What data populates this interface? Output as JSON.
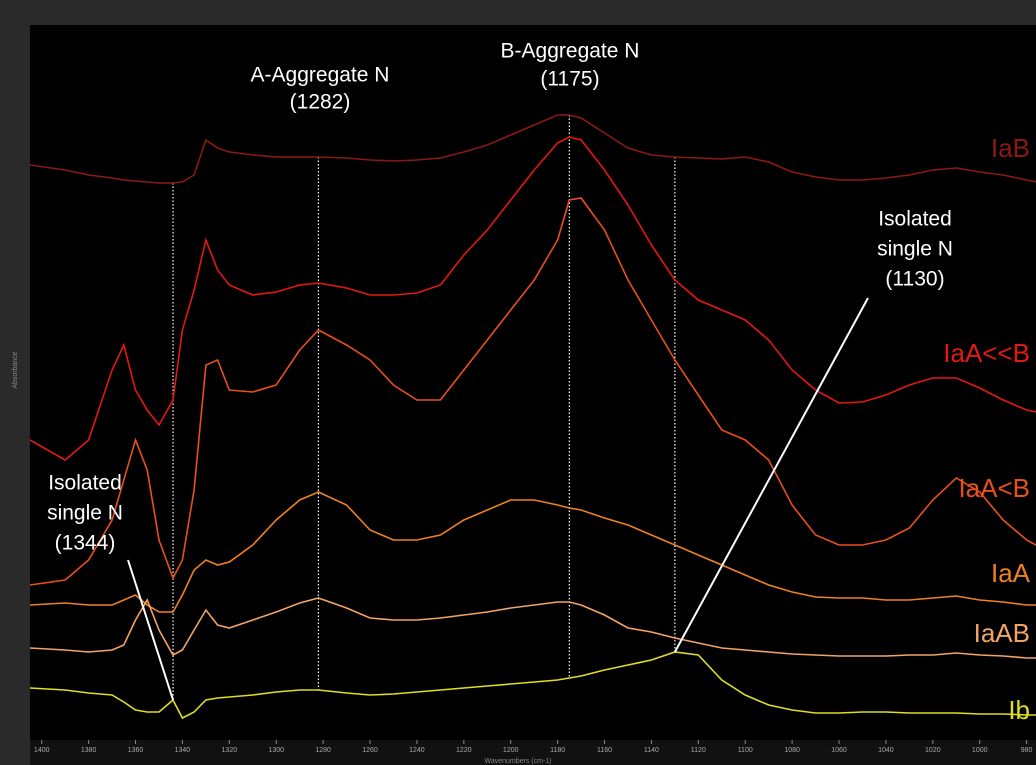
{
  "chart_data": {
    "type": "line",
    "x_label": "Wavenumbers (cm-1)",
    "y_label": "Absorbance",
    "xlim": [
      1405,
      976
    ],
    "ylim": [
      0,
      715
    ],
    "xticks": [
      1400,
      1380,
      1360,
      1340,
      1320,
      1300,
      1280,
      1260,
      1240,
      1220,
      1200,
      1180,
      1160,
      1140,
      1120,
      1100,
      1080,
      1060,
      1040,
      1020,
      1000,
      980
    ],
    "x": [
      1405,
      1390,
      1380,
      1370,
      1365,
      1360,
      1355,
      1350,
      1344,
      1340,
      1335,
      1330,
      1325,
      1320,
      1310,
      1300,
      1290,
      1282,
      1270,
      1260,
      1250,
      1240,
      1230,
      1220,
      1210,
      1200,
      1190,
      1180,
      1175,
      1170,
      1160,
      1150,
      1140,
      1130,
      1120,
      1110,
      1100,
      1090,
      1080,
      1070,
      1060,
      1050,
      1040,
      1030,
      1020,
      1010,
      1000,
      990,
      980,
      976
    ],
    "series": [
      {
        "name": "IaB",
        "color": "#8a1a14",
        "values": [
          575,
          570,
          565,
          562,
          560,
          559,
          558,
          557,
          557,
          558,
          565,
          600,
          592,
          588,
          585,
          583,
          583,
          583,
          582,
          580,
          579,
          580,
          582,
          588,
          595,
          605,
          615,
          625,
          625,
          622,
          607,
          592,
          585,
          583,
          582,
          581,
          583,
          578,
          568,
          563,
          560,
          560,
          562,
          565,
          570,
          572,
          568,
          565,
          560,
          558
        ]
      },
      {
        "name": "IaA<<B",
        "color": "#e41812",
        "values": [
          300,
          280,
          300,
          370,
          395,
          350,
          330,
          315,
          340,
          410,
          450,
          500,
          470,
          455,
          445,
          448,
          455,
          457,
          452,
          445,
          445,
          447,
          455,
          485,
          510,
          540,
          570,
          597,
          603,
          600,
          570,
          535,
          495,
          460,
          440,
          430,
          420,
          400,
          370,
          350,
          337,
          338,
          345,
          355,
          362,
          362,
          352,
          340,
          330,
          328
        ]
      },
      {
        "name": "IaA<B",
        "color": "#e8501e",
        "values": [
          155,
          160,
          180,
          220,
          260,
          300,
          270,
          200,
          162,
          180,
          250,
          375,
          380,
          350,
          348,
          355,
          390,
          410,
          395,
          380,
          355,
          340,
          340,
          370,
          400,
          430,
          460,
          500,
          540,
          542,
          510,
          460,
          420,
          380,
          345,
          310,
          300,
          280,
          235,
          205,
          195,
          195,
          200,
          212,
          240,
          262,
          248,
          220,
          200,
          195
        ]
      },
      {
        "name": "IaA",
        "color": "#ee8222",
        "values": [
          135,
          137,
          135,
          135,
          140,
          145,
          135,
          128,
          128,
          145,
          170,
          180,
          175,
          178,
          195,
          220,
          240,
          248,
          235,
          210,
          200,
          200,
          205,
          220,
          230,
          240,
          240,
          235,
          232,
          230,
          222,
          215,
          205,
          195,
          185,
          175,
          165,
          155,
          148,
          143,
          142,
          142,
          140,
          140,
          142,
          144,
          140,
          138,
          135,
          135
        ]
      },
      {
        "name": "IaAB",
        "color": "#f2a464",
        "values": [
          92,
          90,
          88,
          90,
          95,
          120,
          140,
          110,
          85,
          90,
          110,
          130,
          115,
          112,
          120,
          128,
          137,
          142,
          132,
          122,
          120,
          120,
          122,
          125,
          128,
          132,
          135,
          138,
          138,
          135,
          125,
          112,
          108,
          102,
          97,
          92,
          90,
          88,
          86,
          85,
          84,
          84,
          84,
          85,
          85,
          87,
          85,
          84,
          82,
          82
        ]
      },
      {
        "name": "Ib",
        "color": "#dede24",
        "values": [
          52,
          50,
          47,
          45,
          38,
          30,
          28,
          28,
          40,
          22,
          28,
          40,
          42,
          43,
          45,
          48,
          50,
          50,
          47,
          45,
          46,
          48,
          50,
          52,
          54,
          56,
          58,
          60,
          62,
          64,
          70,
          75,
          80,
          88,
          85,
          60,
          45,
          35,
          30,
          27,
          27,
          28,
          28,
          27,
          27,
          27,
          26,
          26,
          25,
          25
        ]
      }
    ],
    "annotations": [
      {
        "lines": [
          "A-Aggregate N",
          "(1282)"
        ],
        "x": 1282
      },
      {
        "lines": [
          "B-Aggregate N",
          "(1175)"
        ],
        "x": 1175
      },
      {
        "lines": [
          "Isolated",
          "single N",
          "(1130)"
        ],
        "x": 1130
      },
      {
        "lines": [
          "Isolated",
          "single N",
          "(1344)"
        ],
        "x": 1344
      }
    ]
  }
}
